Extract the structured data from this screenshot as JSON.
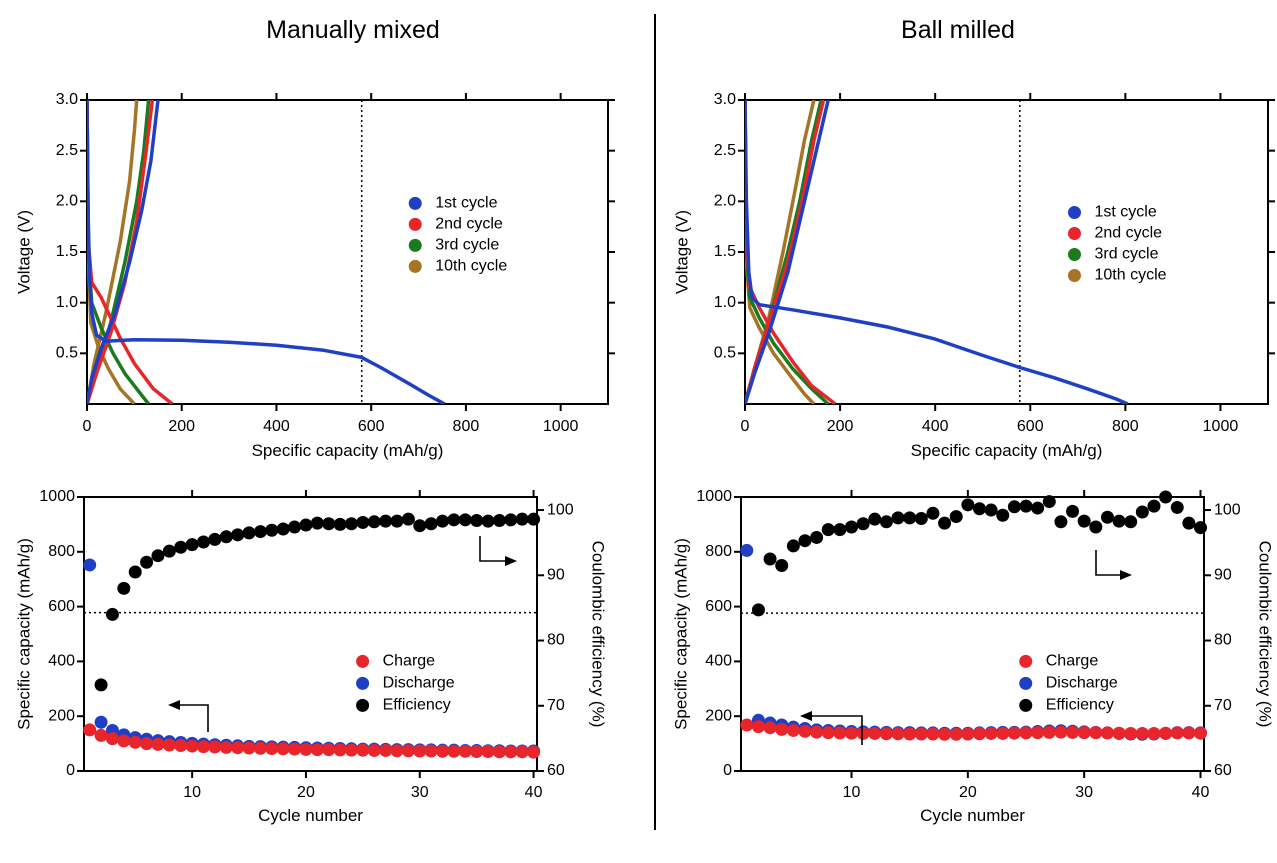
{
  "panels": {
    "left_title": "Manually mixed",
    "right_title": "Ball milled"
  },
  "colors": {
    "first_cycle": "#1f3fc4",
    "second_cycle": "#e8252a",
    "third_cycle": "#1a7a1e",
    "tenth_cycle": "#a57424",
    "charge": "#e8252a",
    "discharge": "#1f3fc4",
    "efficiency": "#000000"
  },
  "chart_data": [
    {
      "type": "line",
      "panel": "Manually mixed",
      "xlabel": "Specific capacity (mAh/g)",
      "ylabel": "Voltage (V)",
      "xlim": [
        0,
        1100
      ],
      "ylim": [
        0,
        3.0
      ],
      "xticks": [
        0,
        200,
        400,
        600,
        800,
        1000
      ],
      "yticks": [
        0.5,
        1.0,
        1.5,
        2.0,
        2.5,
        3.0
      ],
      "reference_x": 580,
      "legend": [
        "1st cycle",
        "2nd cycle",
        "3rd cycle",
        "10th cycle"
      ],
      "series": [
        {
          "name": "1st cycle",
          "discharge": [
            [
              0,
              3.0
            ],
            [
              2,
              2.0
            ],
            [
              5,
              1.3
            ],
            [
              10,
              0.9
            ],
            [
              20,
              0.68
            ],
            [
              40,
              0.62
            ],
            [
              100,
              0.635
            ],
            [
              200,
              0.63
            ],
            [
              300,
              0.61
            ],
            [
              400,
              0.58
            ],
            [
              500,
              0.53
            ],
            [
              580,
              0.46
            ],
            [
              620,
              0.36
            ],
            [
              680,
              0.2
            ],
            [
              720,
              0.09
            ],
            [
              755,
              0.0
            ]
          ],
          "charge": [
            [
              0,
              0.0
            ],
            [
              10,
              0.25
            ],
            [
              30,
              0.55
            ],
            [
              60,
              0.9
            ],
            [
              90,
              1.4
            ],
            [
              115,
              1.9
            ],
            [
              135,
              2.4
            ],
            [
              150,
              3.0
            ]
          ]
        },
        {
          "name": "2nd cycle",
          "discharge": [
            [
              0,
              3.0
            ],
            [
              3,
              1.6
            ],
            [
              10,
              1.2
            ],
            [
              30,
              1.05
            ],
            [
              50,
              0.85
            ],
            [
              70,
              0.65
            ],
            [
              100,
              0.4
            ],
            [
              140,
              0.15
            ],
            [
              180,
              0.0
            ]
          ],
          "charge": [
            [
              0,
              0.0
            ],
            [
              20,
              0.3
            ],
            [
              50,
              0.7
            ],
            [
              80,
              1.2
            ],
            [
              105,
              1.8
            ],
            [
              125,
              2.5
            ],
            [
              138,
              3.0
            ]
          ]
        },
        {
          "name": "3rd cycle",
          "discharge": [
            [
              0,
              3.0
            ],
            [
              3,
              1.5
            ],
            [
              10,
              1.0
            ],
            [
              30,
              0.75
            ],
            [
              55,
              0.5
            ],
            [
              80,
              0.3
            ],
            [
              105,
              0.15
            ],
            [
              130,
              0.0
            ]
          ],
          "charge": [
            [
              0,
              0.0
            ],
            [
              20,
              0.35
            ],
            [
              50,
              0.8
            ],
            [
              80,
              1.4
            ],
            [
              105,
              2.0
            ],
            [
              120,
              2.5
            ],
            [
              130,
              3.0
            ]
          ]
        },
        {
          "name": "10th cycle",
          "discharge": [
            [
              0,
              3.0
            ],
            [
              3,
              1.4
            ],
            [
              8,
              0.8
            ],
            [
              25,
              0.55
            ],
            [
              45,
              0.35
            ],
            [
              70,
              0.15
            ],
            [
              100,
              0.0
            ]
          ],
          "charge": [
            [
              0,
              0.0
            ],
            [
              15,
              0.4
            ],
            [
              40,
              0.9
            ],
            [
              70,
              1.6
            ],
            [
              90,
              2.2
            ],
            [
              100,
              2.7
            ],
            [
              105,
              3.0
            ]
          ]
        }
      ]
    },
    {
      "type": "line",
      "panel": "Ball milled",
      "xlabel": "Specific capacity (mAh/g)",
      "ylabel": "Voltage (V)",
      "xlim": [
        0,
        1100
      ],
      "ylim": [
        0,
        3.0
      ],
      "xticks": [
        0,
        200,
        400,
        600,
        800,
        1000
      ],
      "yticks": [
        0.5,
        1.0,
        1.5,
        2.0,
        2.5,
        3.0
      ],
      "reference_x": 578,
      "legend": [
        "1st cycle",
        "2nd cycle",
        "3rd cycle",
        "10th cycle"
      ],
      "series": [
        {
          "name": "1st cycle",
          "discharge": [
            [
              0,
              3.0
            ],
            [
              3,
              2.0
            ],
            [
              8,
              1.3
            ],
            [
              15,
              1.05
            ],
            [
              30,
              0.98
            ],
            [
              100,
              0.93
            ],
            [
              200,
              0.85
            ],
            [
              300,
              0.76
            ],
            [
              400,
              0.64
            ],
            [
              500,
              0.48
            ],
            [
              578,
              0.36
            ],
            [
              650,
              0.26
            ],
            [
              720,
              0.15
            ],
            [
              780,
              0.05
            ],
            [
              805,
              0.0
            ]
          ],
          "charge": [
            [
              0,
              0.0
            ],
            [
              20,
              0.3
            ],
            [
              50,
              0.7
            ],
            [
              90,
              1.3
            ],
            [
              120,
              1.9
            ],
            [
              150,
              2.5
            ],
            [
              175,
              3.0
            ]
          ]
        },
        {
          "name": "2nd cycle",
          "discharge": [
            [
              0,
              3.0
            ],
            [
              3,
              1.6
            ],
            [
              10,
              1.15
            ],
            [
              30,
              0.95
            ],
            [
              60,
              0.7
            ],
            [
              100,
              0.42
            ],
            [
              140,
              0.18
            ],
            [
              190,
              0.0
            ]
          ],
          "charge": [
            [
              0,
              0.0
            ],
            [
              20,
              0.35
            ],
            [
              50,
              0.8
            ],
            [
              90,
              1.4
            ],
            [
              120,
              2.0
            ],
            [
              145,
              2.6
            ],
            [
              165,
              3.0
            ]
          ]
        },
        {
          "name": "3rd cycle",
          "discharge": [
            [
              0,
              3.0
            ],
            [
              3,
              1.5
            ],
            [
              10,
              1.05
            ],
            [
              30,
              0.85
            ],
            [
              60,
              0.6
            ],
            [
              100,
              0.35
            ],
            [
              140,
              0.15
            ],
            [
              175,
              0.0
            ]
          ],
          "charge": [
            [
              0,
              0.0
            ],
            [
              20,
              0.35
            ],
            [
              50,
              0.8
            ],
            [
              90,
              1.5
            ],
            [
              115,
              2.0
            ],
            [
              140,
              2.6
            ],
            [
              160,
              3.0
            ]
          ]
        },
        {
          "name": "10th cycle",
          "discharge": [
            [
              0,
              3.0
            ],
            [
              3,
              1.4
            ],
            [
              10,
              0.95
            ],
            [
              30,
              0.75
            ],
            [
              60,
              0.5
            ],
            [
              95,
              0.28
            ],
            [
              125,
              0.1
            ],
            [
              145,
              0.0
            ]
          ],
          "charge": [
            [
              0,
              0.0
            ],
            [
              20,
              0.35
            ],
            [
              50,
              0.85
            ],
            [
              80,
              1.5
            ],
            [
              105,
              2.1
            ],
            [
              125,
              2.6
            ],
            [
              145,
              3.0
            ]
          ]
        }
      ]
    },
    {
      "type": "scatter",
      "panel": "Manually mixed",
      "xlabel": "Cycle number",
      "ylabel": "Specific capacity (mAh/g)",
      "y2label": "Coulombic efficiency (%)",
      "xlim": [
        0.5,
        40.3
      ],
      "ylim": [
        0,
        1000
      ],
      "y2lim": [
        60,
        102
      ],
      "xticks": [
        10,
        20,
        30,
        40
      ],
      "yticks": [
        0,
        200,
        400,
        600,
        800,
        1000
      ],
      "y2ticks": [
        60,
        70,
        80,
        90,
        100
      ],
      "reference_y": 578,
      "legend": [
        "Charge",
        "Discharge",
        "Efficiency"
      ],
      "x": [
        1,
        2,
        3,
        4,
        5,
        6,
        7,
        8,
        9,
        10,
        11,
        12,
        13,
        14,
        15,
        16,
        17,
        18,
        19,
        20,
        21,
        22,
        23,
        24,
        25,
        26,
        27,
        28,
        29,
        30,
        31,
        32,
        33,
        34,
        35,
        36,
        37,
        38,
        39,
        40
      ],
      "series": [
        {
          "name": "Charge",
          "values": [
            150,
            130,
            118,
            110,
            105,
            100,
            97,
            95,
            93,
            91,
            89,
            88,
            86,
            85,
            84,
            83,
            82,
            81,
            80,
            79,
            78,
            78,
            77,
            76,
            76,
            75,
            75,
            74,
            74,
            73,
            73,
            72,
            72,
            72,
            71,
            71,
            70,
            70,
            70,
            69
          ]
        },
        {
          "name": "Discharge",
          "values": [
            752,
            178,
            148,
            132,
            122,
            116,
            111,
            107,
            104,
            101,
            98,
            96,
            94,
            92,
            90,
            89,
            88,
            87,
            86,
            85,
            84,
            83,
            82,
            81,
            80,
            80,
            79,
            78,
            78,
            77,
            77,
            76,
            76,
            75,
            75,
            74,
            74,
            73,
            73,
            73
          ]
        },
        {
          "name": "Efficiency",
          "values": [
            null,
            73.2,
            84.0,
            88.0,
            90.5,
            92.0,
            93.0,
            93.7,
            94.3,
            94.7,
            95.1,
            95.5,
            95.9,
            96.2,
            96.5,
            96.7,
            96.9,
            97.1,
            97.4,
            97.7,
            98.0,
            97.9,
            97.8,
            97.9,
            98.1,
            98.2,
            98.3,
            98.3,
            98.6,
            97.6,
            97.9,
            98.3,
            98.5,
            98.5,
            98.4,
            98.3,
            98.4,
            98.5,
            98.6,
            98.6
          ]
        }
      ]
    },
    {
      "type": "scatter",
      "panel": "Ball milled",
      "xlabel": "Cycle number",
      "ylabel": "Specific capacity (mAh/g)",
      "y2label": "Coulombic efficiency (%)",
      "xlim": [
        0.5,
        40.3
      ],
      "ylim": [
        0,
        1000
      ],
      "y2lim": [
        60,
        102
      ],
      "xticks": [
        10,
        20,
        30,
        40
      ],
      "yticks": [
        0,
        200,
        400,
        600,
        800,
        1000
      ],
      "y2ticks": [
        60,
        70,
        80,
        90,
        100
      ],
      "reference_y": 576,
      "legend": [
        "Charge",
        "Discharge",
        "Efficiency"
      ],
      "x": [
        1,
        2,
        3,
        4,
        5,
        6,
        7,
        8,
        9,
        10,
        11,
        12,
        13,
        14,
        15,
        16,
        17,
        18,
        19,
        20,
        21,
        22,
        23,
        24,
        25,
        26,
        27,
        28,
        29,
        30,
        31,
        32,
        33,
        34,
        35,
        36,
        37,
        38,
        39,
        40
      ],
      "series": [
        {
          "name": "Charge",
          "values": [
            168,
            162,
            158,
            152,
            148,
            145,
            142,
            140,
            139,
            138,
            137,
            137,
            136,
            136,
            135,
            135,
            135,
            134,
            134,
            135,
            136,
            137,
            137,
            138,
            139,
            140,
            141,
            142,
            141,
            140,
            140,
            139,
            138,
            137,
            137,
            137,
            138,
            139,
            139,
            138
          ]
        },
        {
          "name": "Discharge",
          "values": [
            805,
            185,
            175,
            168,
            160,
            155,
            150,
            148,
            146,
            144,
            143,
            142,
            141,
            140,
            140,
            139,
            139,
            138,
            138,
            138,
            139,
            140,
            141,
            141,
            142,
            144,
            146,
            147,
            145,
            143,
            141,
            139,
            137,
            135,
            134,
            135,
            137,
            140,
            140,
            139
          ]
        },
        {
          "name": "Efficiency",
          "values": [
            null,
            84.7,
            92.5,
            91.5,
            94.5,
            95.3,
            95.8,
            97.0,
            97.0,
            97.4,
            97.9,
            98.6,
            98.2,
            98.8,
            98.8,
            98.7,
            99.5,
            98.0,
            99.0,
            100.8,
            100.2,
            100.0,
            99.2,
            100.5,
            100.6,
            100.3,
            101.3,
            98.2,
            99.8,
            98.3,
            97.4,
            98.9,
            98.3,
            98.2,
            99.7,
            100.6,
            102.0,
            100.4,
            98.0,
            97.3
          ]
        }
      ]
    }
  ]
}
